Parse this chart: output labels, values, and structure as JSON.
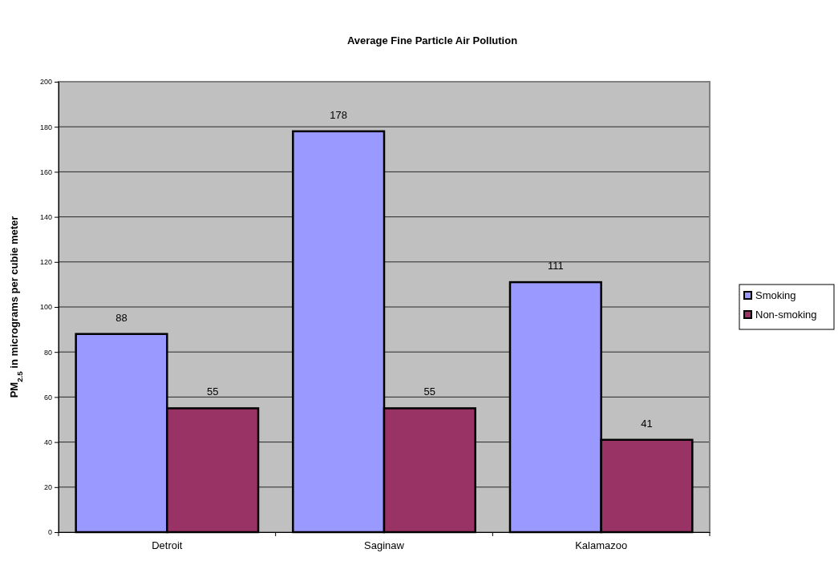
{
  "chart_data": {
    "type": "bar",
    "title": "Average Fine Particle Air Pollution",
    "ylabel": "PM$_{2.5}$ in micrograms per cubie meter",
    "categories": [
      "Detroit",
      "Saginaw",
      "Kalamazoo"
    ],
    "series": [
      {
        "name": "Smoking",
        "color": "#9999ff",
        "values": [
          88,
          178,
          111
        ]
      },
      {
        "name": "Non-smoking",
        "color": "#993366",
        "values": [
          55,
          55,
          41
        ]
      }
    ],
    "ylim": [
      0,
      200
    ],
    "yticks": [
      0,
      20,
      40,
      60,
      80,
      100,
      120,
      140,
      160,
      180,
      200
    ],
    "grid": "y",
    "legend": "right",
    "data_labels": true
  }
}
